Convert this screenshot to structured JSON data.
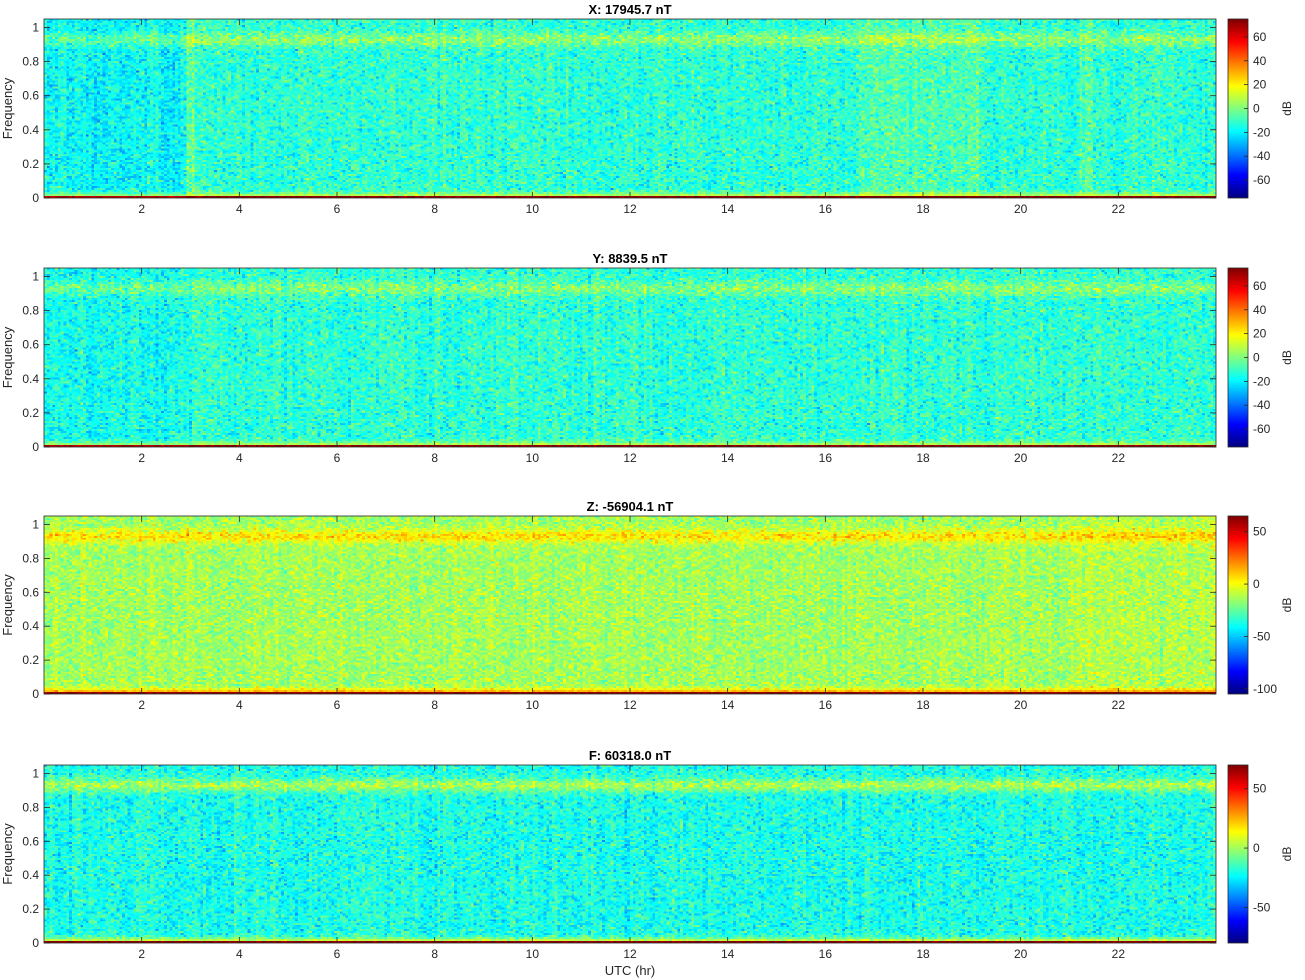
{
  "figure": {
    "xlabel": "UTC (hr)"
  },
  "chart_data": [
    {
      "type": "heatmap",
      "title": "X: 17945.7 nT",
      "ylabel": "Frequency",
      "colorbar_label": "dB",
      "xlim": [
        0,
        24
      ],
      "ylim": [
        0,
        1.05
      ],
      "x_ticks": [
        2,
        4,
        6,
        8,
        10,
        12,
        14,
        16,
        18,
        20,
        22
      ],
      "y_ticks": [
        0,
        0.2,
        0.4,
        0.6,
        0.8,
        1
      ],
      "y_tick_labels": [
        "0",
        "0.2",
        "0.4",
        "0.6",
        "0.8",
        "1"
      ],
      "clim": [
        -75,
        75
      ],
      "colorbar_ticks": [
        60,
        40,
        20,
        0,
        -20,
        -40,
        -60
      ],
      "colormap": "jet",
      "profile": {
        "base": -12,
        "upper_band": 2,
        "low_band": 28,
        "bottom_line": 72
      },
      "time_features": [
        {
          "range": [
            0,
            2.9
          ],
          "offset": -6
        },
        {
          "range": [
            2.9,
            3.1
          ],
          "offset": 8
        },
        {
          "range": [
            16.7,
            19.2
          ],
          "offset": 5
        },
        {
          "range": [
            21.2,
            21.5
          ],
          "offset": 6
        }
      ]
    },
    {
      "type": "heatmap",
      "title": "Y: 8839.5 nT",
      "ylabel": "Frequency",
      "colorbar_label": "dB",
      "xlim": [
        0,
        24
      ],
      "ylim": [
        0,
        1.05
      ],
      "x_ticks": [
        2,
        4,
        6,
        8,
        10,
        12,
        14,
        16,
        18,
        20,
        22
      ],
      "y_ticks": [
        0,
        0.2,
        0.4,
        0.6,
        0.8,
        1
      ],
      "y_tick_labels": [
        "0",
        "0.2",
        "0.4",
        "0.6",
        "0.8",
        "1"
      ],
      "clim": [
        -75,
        75
      ],
      "colorbar_ticks": [
        60,
        40,
        20,
        0,
        -20,
        -40,
        -60
      ],
      "colormap": "jet",
      "profile": {
        "base": -12,
        "upper_band": 1,
        "low_band": 26,
        "bottom_line": 72
      },
      "time_features": [
        {
          "range": [
            0,
            3
          ],
          "offset": -4
        }
      ]
    },
    {
      "type": "heatmap",
      "title": "Z: -56904.1 nT",
      "ylabel": "Frequency",
      "colorbar_label": "dB",
      "xlim": [
        0,
        24
      ],
      "ylim": [
        0,
        1.05
      ],
      "x_ticks": [
        2,
        4,
        6,
        8,
        10,
        12,
        14,
        16,
        18,
        20,
        22
      ],
      "y_ticks": [
        0,
        0.2,
        0.4,
        0.6,
        0.8,
        1
      ],
      "y_tick_labels": [
        "0",
        "0.2",
        "0.4",
        "0.6",
        "0.8",
        "1"
      ],
      "clim": [
        -105,
        65
      ],
      "colorbar_ticks": [
        50,
        0,
        -50,
        -100
      ],
      "colormap": "jet",
      "profile": {
        "base": -14,
        "upper_band": 6,
        "low_band": 42,
        "bottom_line": 62
      },
      "time_features": [
        {
          "range": [
            21,
            24
          ],
          "offset": 3
        }
      ]
    },
    {
      "type": "heatmap",
      "title": "F: 60318.0 nT",
      "ylabel": "Frequency",
      "colorbar_label": "dB",
      "xlim": [
        0,
        24
      ],
      "ylim": [
        0,
        1.05
      ],
      "x_ticks": [
        2,
        4,
        6,
        8,
        10,
        12,
        14,
        16,
        18,
        20,
        22
      ],
      "y_ticks": [
        0,
        0.2,
        0.4,
        0.6,
        0.8,
        1
      ],
      "y_tick_labels": [
        "0",
        "0.2",
        "0.4",
        "0.6",
        "0.8",
        "1"
      ],
      "clim": [
        -80,
        70
      ],
      "colorbar_ticks": [
        50,
        0,
        -50
      ],
      "colormap": "jet",
      "profile": {
        "base": -20,
        "upper_band": 1,
        "low_band": 30,
        "bottom_line": 68
      },
      "time_features": [
        {
          "range": [
            0,
            24
          ],
          "offset": 0
        }
      ]
    }
  ]
}
